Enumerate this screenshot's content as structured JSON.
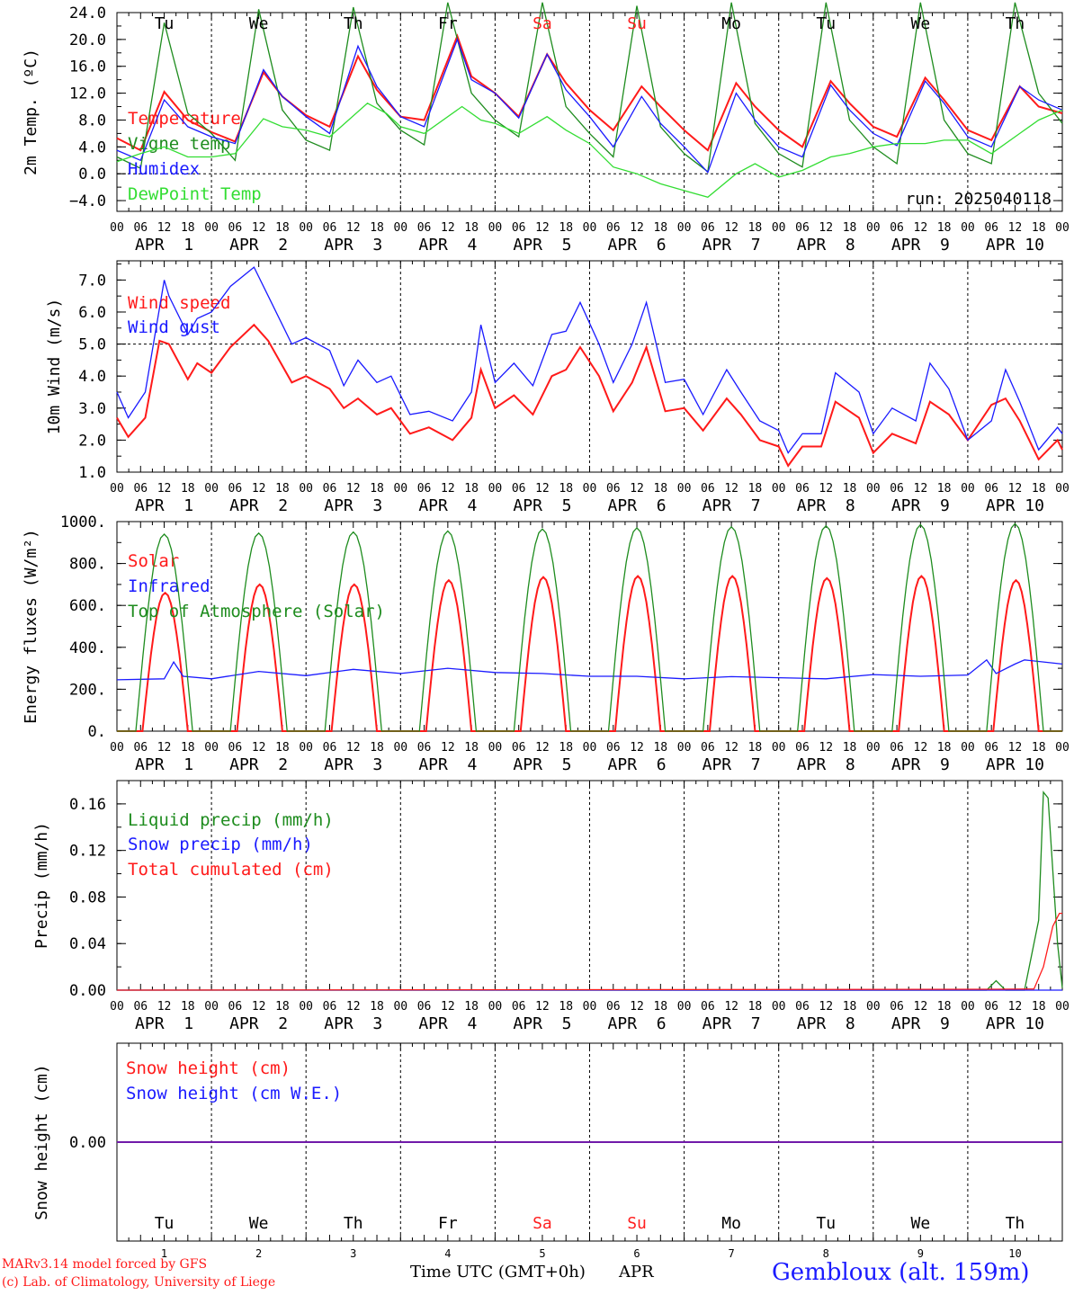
{
  "run_label": "run: 2025040118",
  "colors": {
    "red": "#ff1a1a",
    "green": "#1e8c1e",
    "blue": "#1a1aff",
    "lightgreen": "#33dd33",
    "weekend": "#ff2020",
    "text": "#000000"
  },
  "x_tick_hours": [
    "00",
    "06",
    "12",
    "18"
  ],
  "date_labels": [
    "APR  1",
    "APR  2",
    "APR  3",
    "APR  4",
    "APR  5",
    "APR  6",
    "APR  7",
    "APR  8",
    "APR  9",
    "APR 10"
  ],
  "day_names": [
    "Tu",
    "We",
    "Th",
    "Fr",
    "Sa",
    "Su",
    "Mo",
    "Tu",
    "We",
    "Th"
  ],
  "weekend_days": [
    4,
    5
  ],
  "bottom_day_numbers": [
    "1",
    "2",
    "3",
    "4",
    "5",
    "6",
    "7",
    "8",
    "9",
    "10"
  ],
  "footer": {
    "model": "MARv3.14 model forced by GFS",
    "copyright": "(c) Lab. of Climatology, University of Liege",
    "time_axis": "Time UTC (GMT+0h)",
    "month": "APR",
    "station": "Gembloux (alt. 159m)"
  },
  "chart_data": [
    {
      "type": "line",
      "ylabel": "2m Temp. (ºC)",
      "ylim": [
        -5.6,
        24.0
      ],
      "yticks": [
        "24.0",
        "20.0",
        "16.0",
        "12.0",
        "8.0",
        "4.0",
        "0.0",
        "−4.0"
      ],
      "ytick_values": [
        24,
        20,
        16,
        12,
        8,
        4,
        0,
        -4
      ],
      "x_unit": "days",
      "series": [
        {
          "name": "Temperature",
          "color": "#ff1a1a",
          "x": [
            0,
            0.25,
            0.5,
            0.75,
            1,
            1.25,
            1.55,
            1.75,
            2,
            2.25,
            2.55,
            2.75,
            3,
            3.25,
            3.6,
            3.75,
            4,
            4.25,
            4.55,
            4.75,
            5,
            5.25,
            5.55,
            5.75,
            6,
            6.25,
            6.55,
            6.75,
            7,
            7.25,
            7.55,
            7.75,
            8,
            8.25,
            8.55,
            8.75,
            9,
            9.25,
            9.55,
            9.75,
            10
          ],
          "values": [
            5.3,
            3.5,
            12.2,
            8.0,
            6.2,
            4.8,
            15.1,
            11.5,
            8.7,
            7.0,
            17.5,
            12.5,
            8.5,
            8.0,
            20.5,
            14.5,
            12.0,
            8.5,
            17.8,
            13.5,
            9.5,
            6.5,
            13.0,
            10.0,
            6.5,
            3.5,
            13.5,
            10.0,
            6.5,
            4.0,
            13.8,
            10.5,
            7.0,
            5.5,
            14.3,
            11.0,
            6.5,
            5.0,
            13.0,
            10.0,
            9.0
          ]
        },
        {
          "name": "Vigne temp",
          "color": "#1e8c1e",
          "x": [
            0,
            0.25,
            0.5,
            0.75,
            1,
            1.25,
            1.5,
            1.75,
            2,
            2.25,
            2.5,
            2.75,
            3,
            3.25,
            3.5,
            3.75,
            4,
            4.25,
            4.5,
            4.75,
            5,
            5.25,
            5.5,
            5.75,
            6,
            6.25,
            6.5,
            6.75,
            7,
            7.25,
            7.5,
            7.75,
            8,
            8.25,
            8.5,
            8.75,
            9,
            9.25,
            9.5,
            9.75,
            10
          ],
          "values": [
            2.5,
            0.8,
            22.5,
            9.0,
            6.0,
            2.0,
            24.5,
            9.5,
            5.0,
            3.5,
            24.8,
            10.5,
            6.5,
            4.3,
            25.5,
            12.0,
            8.0,
            5.5,
            25.5,
            10.0,
            6.0,
            2.5,
            25.0,
            7.0,
            3.0,
            0.3,
            25.5,
            7.5,
            3.0,
            1.0,
            25.5,
            8.0,
            4.0,
            1.5,
            25.5,
            8.0,
            3.0,
            1.5,
            25.5,
            12.0,
            7.5
          ]
        },
        {
          "name": "Humidex",
          "color": "#1a1aff",
          "x": [
            0,
            0.25,
            0.5,
            0.75,
            1,
            1.25,
            1.55,
            1.75,
            2,
            2.25,
            2.55,
            2.75,
            3,
            3.25,
            3.6,
            3.75,
            4,
            4.25,
            4.55,
            4.75,
            5,
            5.25,
            5.55,
            5.75,
            6,
            6.25,
            6.55,
            6.75,
            7,
            7.25,
            7.55,
            7.75,
            8,
            8.25,
            8.55,
            8.75,
            9,
            9.25,
            9.55,
            9.75,
            10
          ],
          "values": [
            3.5,
            2.0,
            11.0,
            7.0,
            5.5,
            4.5,
            15.5,
            11.5,
            8.5,
            6.0,
            19.0,
            13.0,
            8.5,
            7.0,
            20.0,
            14.0,
            12.0,
            8.3,
            17.8,
            12.5,
            8.5,
            4.0,
            11.5,
            7.5,
            4.0,
            0.2,
            12.0,
            8.0,
            4.0,
            2.5,
            13.2,
            9.5,
            6.0,
            4.2,
            13.8,
            10.5,
            5.5,
            4.0,
            13.0,
            11.0,
            9.5
          ]
        },
        {
          "name": "DewPoint Temp",
          "color": "#33dd33",
          "x": [
            0,
            0.25,
            0.5,
            0.75,
            1,
            1.25,
            1.55,
            1.75,
            2,
            2.25,
            2.65,
            2.85,
            3,
            3.25,
            3.65,
            3.85,
            4,
            4.25,
            4.55,
            4.75,
            5,
            5.25,
            5.5,
            5.75,
            6,
            6.25,
            6.55,
            6.75,
            7,
            7.25,
            7.55,
            7.75,
            8,
            8.25,
            8.55,
            8.75,
            9,
            9.25,
            9.55,
            9.75,
            10
          ],
          "values": [
            1.8,
            3.0,
            4.0,
            2.5,
            2.5,
            3.0,
            8.2,
            7.0,
            6.5,
            5.5,
            10.5,
            9.0,
            7.0,
            6.0,
            10.0,
            8.0,
            7.5,
            6.0,
            8.5,
            6.5,
            4.5,
            1.0,
            0.0,
            -1.5,
            -2.5,
            -3.5,
            0.0,
            1.5,
            -0.5,
            0.5,
            2.5,
            3.0,
            4.0,
            4.5,
            4.5,
            5.0,
            5.0,
            3.0,
            6.0,
            8.0,
            9.5
          ]
        }
      ]
    },
    {
      "type": "line",
      "ylabel": "10m Wind (m/s)",
      "ylim": [
        1.0,
        7.6
      ],
      "yticks": [
        "7.0",
        "6.0",
        "5.0",
        "4.0",
        "3.0",
        "2.0",
        "1.0"
      ],
      "ytick_values": [
        7,
        6,
        5,
        4,
        3,
        2,
        1
      ],
      "reference_line": 5.0,
      "x_unit": "days",
      "series": [
        {
          "name": "Wind speed",
          "color": "#ff1a1a",
          "x": [
            0,
            0.12,
            0.3,
            0.45,
            0.55,
            0.75,
            0.85,
            1.0,
            1.2,
            1.45,
            1.6,
            1.85,
            2.0,
            2.25,
            2.4,
            2.55,
            2.75,
            2.9,
            3.1,
            3.3,
            3.55,
            3.75,
            3.85,
            4.0,
            4.2,
            4.4,
            4.6,
            4.75,
            4.9,
            5.1,
            5.25,
            5.45,
            5.6,
            5.8,
            6.0,
            6.2,
            6.45,
            6.6,
            6.8,
            7.0,
            7.1,
            7.25,
            7.45,
            7.6,
            7.85,
            8.0,
            8.2,
            8.45,
            8.6,
            8.8,
            9.0,
            9.25,
            9.4,
            9.55,
            9.75,
            9.95,
            10.0
          ],
          "values": [
            2.7,
            2.1,
            2.7,
            5.1,
            5.0,
            3.9,
            4.4,
            4.1,
            4.9,
            5.6,
            5.1,
            3.8,
            4.0,
            3.6,
            3.0,
            3.3,
            2.8,
            3.0,
            2.2,
            2.4,
            2.0,
            2.7,
            4.2,
            3.0,
            3.4,
            2.8,
            4.0,
            4.2,
            4.9,
            4.0,
            2.9,
            3.8,
            4.9,
            2.9,
            3.0,
            2.3,
            3.3,
            2.8,
            2.0,
            1.8,
            1.2,
            1.8,
            1.8,
            3.2,
            2.7,
            1.6,
            2.2,
            1.9,
            3.2,
            2.8,
            2.0,
            3.1,
            3.3,
            2.6,
            1.4,
            2.0,
            1.7
          ]
        },
        {
          "name": "Wind gust",
          "color": "#1a1aff",
          "x": [
            0,
            0.12,
            0.3,
            0.5,
            0.55,
            0.75,
            0.85,
            1.0,
            1.2,
            1.45,
            1.6,
            1.85,
            2.0,
            2.25,
            2.4,
            2.55,
            2.75,
            2.9,
            3.1,
            3.3,
            3.55,
            3.75,
            3.85,
            4.0,
            4.2,
            4.4,
            4.6,
            4.75,
            4.9,
            5.1,
            5.25,
            5.45,
            5.6,
            5.8,
            6.0,
            6.2,
            6.45,
            6.6,
            6.8,
            7.0,
            7.1,
            7.25,
            7.45,
            7.6,
            7.85,
            8.0,
            8.2,
            8.45,
            8.6,
            8.8,
            9.0,
            9.25,
            9.4,
            9.55,
            9.75,
            9.95,
            10.0
          ],
          "values": [
            3.5,
            2.7,
            3.5,
            7.0,
            6.5,
            5.3,
            5.8,
            6.0,
            6.8,
            7.4,
            6.5,
            5.0,
            5.2,
            4.8,
            3.7,
            4.5,
            3.8,
            4.0,
            2.8,
            2.9,
            2.6,
            3.5,
            5.6,
            3.8,
            4.4,
            3.7,
            5.3,
            5.4,
            6.3,
            5.0,
            3.8,
            5.0,
            6.3,
            3.8,
            3.9,
            2.8,
            4.2,
            3.5,
            2.6,
            2.3,
            1.6,
            2.2,
            2.2,
            4.1,
            3.5,
            2.2,
            3.0,
            2.6,
            4.4,
            3.6,
            2.0,
            2.6,
            4.2,
            3.2,
            1.7,
            2.4,
            2.2
          ]
        }
      ]
    },
    {
      "type": "line",
      "ylabel": "Energy fluxes (W/m²)",
      "ylim": [
        0,
        1000
      ],
      "yticks": [
        "1000.",
        "800.",
        "600.",
        "400.",
        "200.",
        "0."
      ],
      "ytick_values": [
        1000,
        800,
        600,
        400,
        200,
        0
      ],
      "x_unit": "days",
      "series": [
        {
          "name": "Solar",
          "color": "#ff1a1a",
          "diurnal_peaks": [
            660,
            700,
            700,
            720,
            735,
            740,
            740,
            730,
            740,
            720
          ]
        },
        {
          "name": "Infrared",
          "color": "#1a1aff",
          "x": [
            0,
            0.5,
            0.6,
            0.7,
            1,
            1.5,
            2,
            2.5,
            3,
            3.5,
            4,
            4.5,
            5,
            5.5,
            6,
            6.5,
            7,
            7.5,
            8,
            8.5,
            9,
            9.2,
            9.3,
            9.5,
            9.6,
            10
          ],
          "values": [
            245,
            250,
            330,
            262,
            250,
            285,
            265,
            295,
            275,
            300,
            280,
            275,
            262,
            262,
            250,
            260,
            255,
            250,
            270,
            262,
            268,
            340,
            275,
            320,
            340,
            320
          ]
        },
        {
          "name": "Top of Atmosphere (Solar)",
          "color": "#1e8c1e",
          "diurnal_peaks": [
            940,
            945,
            950,
            955,
            965,
            970,
            975,
            980,
            985,
            990
          ]
        }
      ]
    },
    {
      "type": "line",
      "ylabel": "Precip (mm/h)",
      "ylim": [
        0,
        0.18
      ],
      "yticks": [
        "0.16",
        "0.12",
        "0.08",
        "0.04",
        "0.00"
      ],
      "ytick_values": [
        0.16,
        0.12,
        0.08,
        0.04,
        0
      ],
      "x_unit": "days",
      "series": [
        {
          "name": "Liquid precip (mm/h)",
          "color": "#1e8c1e",
          "x": [
            0,
            9.2,
            9.3,
            9.4,
            9.6,
            9.75,
            9.8,
            9.85,
            9.95,
            10.0
          ],
          "values": [
            0,
            0,
            0.008,
            0,
            0,
            0.06,
            0.17,
            0.165,
            0.04,
            0.002
          ]
        },
        {
          "name": "Snow precip (mm/h)",
          "color": "#1a1aff",
          "x": [
            0,
            10
          ],
          "values": [
            0,
            0
          ]
        },
        {
          "name": "Total cumulated (cm)",
          "color": "#ff1a1a",
          "x": [
            0,
            9.3,
            9.7,
            9.8,
            9.9,
            9.97,
            10.0
          ],
          "values": [
            0,
            0.0008,
            0.001,
            0.02,
            0.055,
            0.066,
            0.066
          ]
        }
      ]
    },
    {
      "type": "line",
      "ylabel": "Snow height (cm)",
      "yticks": [
        "0.00"
      ],
      "ytick_values": [
        0
      ],
      "ylim": [
        -1,
        1
      ],
      "x_unit": "days",
      "series": [
        {
          "name": "Snow height (cm)",
          "color": "#ff1a1a",
          "x": [
            0,
            10
          ],
          "values": [
            0,
            0
          ]
        },
        {
          "name": "Snow height (cm W.E.)",
          "color": "#1a1aff",
          "x": [
            0,
            10
          ],
          "values": [
            0,
            0
          ]
        }
      ]
    }
  ]
}
